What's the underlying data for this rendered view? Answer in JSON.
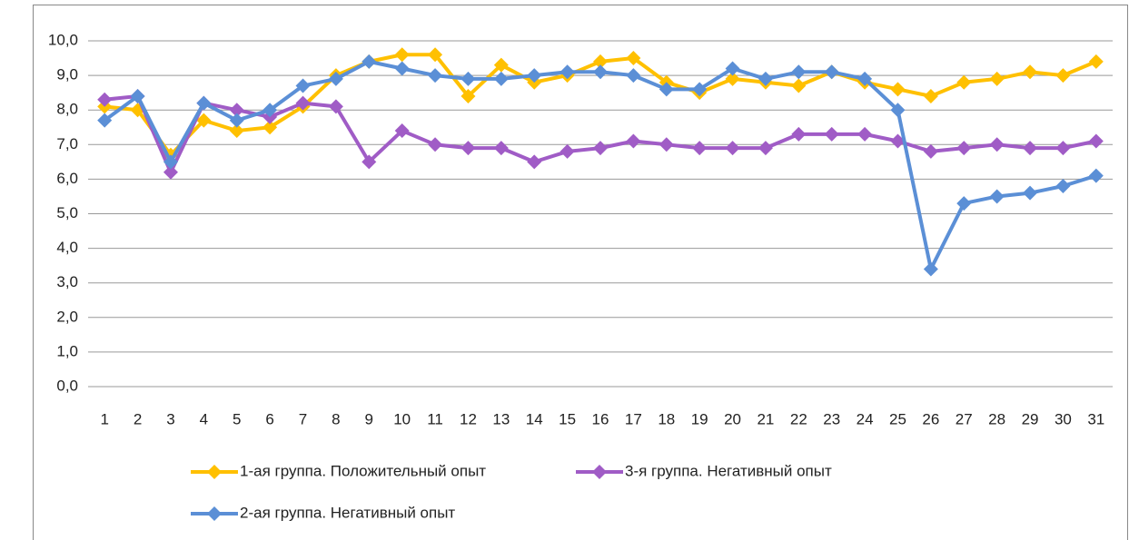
{
  "chart_data": {
    "type": "line",
    "categories": [
      "1",
      "2",
      "3",
      "4",
      "5",
      "6",
      "7",
      "8",
      "9",
      "10",
      "11",
      "12",
      "13",
      "14",
      "15",
      "16",
      "17",
      "18",
      "19",
      "20",
      "21",
      "22",
      "23",
      "24",
      "25",
      "26",
      "27",
      "28",
      "29",
      "30",
      "31"
    ],
    "series": [
      {
        "name": "1-ая группа. Положительный опыт",
        "color": "#FFC000",
        "values": [
          8.1,
          8.0,
          6.7,
          7.7,
          7.4,
          7.5,
          8.1,
          9.0,
          9.4,
          9.6,
          9.6,
          8.4,
          9.3,
          8.8,
          9.0,
          9.4,
          9.5,
          8.8,
          8.5,
          8.9,
          8.8,
          8.7,
          9.1,
          8.8,
          8.6,
          8.4,
          8.8,
          8.9,
          9.1,
          9.0,
          9.4
        ]
      },
      {
        "name": "3-я группа. Негативный опыт",
        "color": "#A05CC6",
        "values": [
          8.3,
          8.4,
          6.2,
          8.2,
          8.0,
          7.8,
          8.2,
          8.1,
          6.5,
          7.4,
          7.0,
          6.9,
          6.9,
          6.5,
          6.8,
          6.9,
          7.1,
          7.0,
          6.9,
          6.9,
          6.9,
          7.3,
          7.3,
          7.3,
          7.1,
          6.8,
          6.9,
          7.0,
          6.9,
          6.9,
          7.1
        ]
      },
      {
        "name": "2-ая группа. Негативный опыт",
        "color": "#5B8FD6",
        "values": [
          7.7,
          8.4,
          6.5,
          8.2,
          7.7,
          8.0,
          8.7,
          8.9,
          9.4,
          9.2,
          9.0,
          8.9,
          8.9,
          9.0,
          9.1,
          9.1,
          9.0,
          8.6,
          8.6,
          9.2,
          8.9,
          9.1,
          9.1,
          8.9,
          8.0,
          3.4,
          5.3,
          5.5,
          5.6,
          5.8,
          6.1
        ]
      }
    ],
    "ylim": [
      0,
      10
    ],
    "yticks": [
      {
        "value": 0,
        "label": "0,0"
      },
      {
        "value": 1,
        "label": "1,0"
      },
      {
        "value": 2,
        "label": "2,0"
      },
      {
        "value": 3,
        "label": "3,0"
      },
      {
        "value": 4,
        "label": "4,0"
      },
      {
        "value": 5,
        "label": "5,0"
      },
      {
        "value": 6,
        "label": "6,0"
      },
      {
        "value": 7,
        "label": "7,0"
      },
      {
        "value": 8,
        "label": "8,0"
      },
      {
        "value": 9,
        "label": "9,0"
      },
      {
        "value": 10,
        "label": "10,0"
      }
    ],
    "grid": true,
    "legend": "bottom"
  }
}
